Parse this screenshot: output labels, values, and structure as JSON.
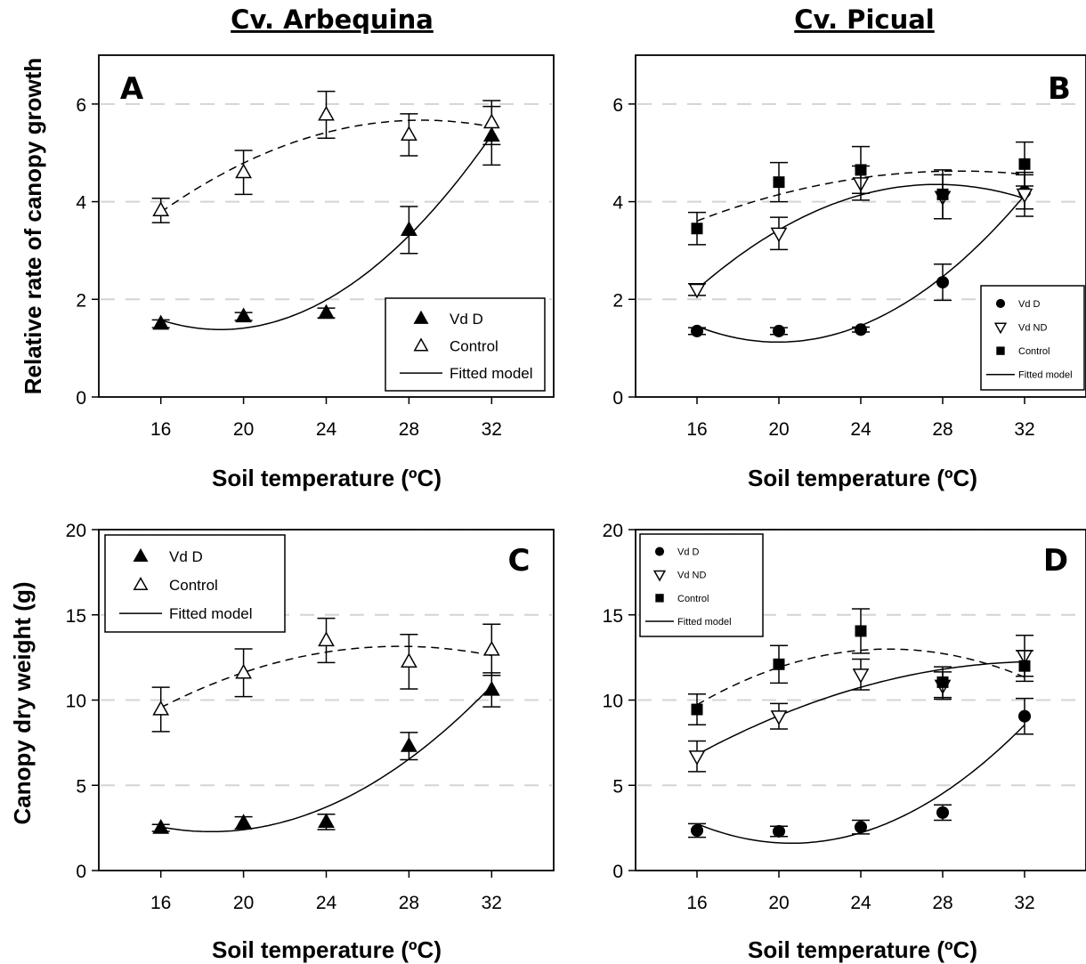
{
  "figure": {
    "column_titles": [
      "Cv. Arbequina",
      "Cv. Picual"
    ],
    "xlabel": "Soil temperature (ºC)",
    "ylabel_top": "Relative rate of canopy growth",
    "ylabel_bottom": "Canopy dry weight (g)"
  },
  "chart_data": [
    {
      "panel": "A",
      "type": "scatter",
      "xlabel": "Soil temperature (ºC)",
      "ylabel": "Relative rate of canopy growth",
      "x": [
        16,
        20,
        24,
        28,
        32
      ],
      "xlim": [
        13,
        35
      ],
      "ylim": [
        0,
        7
      ],
      "yticks": [
        0,
        2,
        4,
        6
      ],
      "grid": "horizontal dashed",
      "legend": {
        "position": "bottom-right",
        "entries": [
          "Vd D",
          "Control",
          "Fitted model"
        ]
      },
      "series": [
        {
          "name": "Vd D",
          "marker": "filled-triangle",
          "values": [
            1.5,
            1.65,
            1.72,
            3.42,
            5.35
          ],
          "errors": [
            0.08,
            0.08,
            0.1,
            0.48,
            0.6
          ],
          "fit": "solid"
        },
        {
          "name": "Control",
          "marker": "open-triangle",
          "values": [
            3.82,
            4.6,
            5.78,
            5.37,
            5.62
          ],
          "errors": [
            0.25,
            0.45,
            0.48,
            0.43,
            0.45
          ],
          "fit": "dashed"
        }
      ]
    },
    {
      "panel": "B",
      "type": "scatter",
      "xlabel": "Soil temperature (ºC)",
      "ylabel": "",
      "x": [
        16,
        20,
        24,
        28,
        32
      ],
      "xlim": [
        13,
        35
      ],
      "ylim": [
        0,
        7
      ],
      "yticks": [
        0,
        2,
        4,
        6
      ],
      "grid": "horizontal dashed",
      "legend": {
        "position": "bottom-right",
        "entries": [
          "Vd D",
          "Vd ND",
          "Control",
          "Fitted model"
        ]
      },
      "series": [
        {
          "name": "Vd D",
          "marker": "filled-circle",
          "values": [
            1.35,
            1.35,
            1.38,
            2.35,
            4.2
          ],
          "errors": [
            0.07,
            0.07,
            0.05,
            0.37,
            0.35
          ],
          "fit": "solid"
        },
        {
          "name": "Vd ND",
          "marker": "open-down-triangle",
          "values": [
            2.2,
            3.35,
            4.38,
            4.1,
            4.15
          ],
          "errors": [
            0.12,
            0.33,
            0.35,
            0.45,
            0.45
          ],
          "fit": "solid"
        },
        {
          "name": "Control",
          "marker": "filled-square",
          "values": [
            3.45,
            4.4,
            4.65,
            4.15,
            4.77
          ],
          "errors": [
            0.33,
            0.4,
            0.48,
            0.5,
            0.45
          ],
          "fit": "dashed"
        }
      ]
    },
    {
      "panel": "C",
      "type": "scatter",
      "xlabel": "Soil temperature (ºC)",
      "ylabel": "Canopy dry weight (g)",
      "x": [
        16,
        20,
        24,
        28,
        32
      ],
      "xlim": [
        13,
        35
      ],
      "ylim": [
        0,
        20
      ],
      "yticks": [
        0,
        5,
        10,
        15,
        20
      ],
      "grid": "horizontal dashed",
      "legend": {
        "position": "top-left",
        "entries": [
          "Vd D",
          "Control",
          "Fitted model"
        ]
      },
      "series": [
        {
          "name": "Vd D",
          "marker": "filled-triangle",
          "values": [
            2.5,
            2.8,
            2.85,
            7.3,
            10.6
          ],
          "errors": [
            0.2,
            0.35,
            0.45,
            0.8,
            1.0
          ],
          "fit": "solid"
        },
        {
          "name": "Control",
          "marker": "open-triangle",
          "values": [
            9.45,
            11.6,
            13.5,
            12.25,
            12.95
          ],
          "errors": [
            1.3,
            1.4,
            1.3,
            1.6,
            1.5
          ],
          "fit": "dashed"
        }
      ]
    },
    {
      "panel": "D",
      "type": "scatter",
      "xlabel": "Soil temperature (ºC)",
      "ylabel": "",
      "x": [
        16,
        20,
        24,
        28,
        32
      ],
      "xlim": [
        13,
        35
      ],
      "ylim": [
        0,
        20
      ],
      "yticks": [
        0,
        5,
        10,
        15,
        20
      ],
      "grid": "horizontal dashed",
      "legend": {
        "position": "top-left",
        "entries": [
          "Vd D",
          "Vd ND",
          "Control",
          "Fitted model"
        ]
      },
      "series": [
        {
          "name": "Vd D",
          "marker": "filled-circle",
          "values": [
            2.35,
            2.3,
            2.55,
            3.4,
            9.05
          ],
          "errors": [
            0.4,
            0.3,
            0.4,
            0.45,
            1.05
          ],
          "fit": "solid"
        },
        {
          "name": "Vd ND",
          "marker": "open-down-triangle",
          "values": [
            6.7,
            9.05,
            11.5,
            10.85,
            12.6
          ],
          "errors": [
            0.9,
            0.75,
            0.9,
            0.8,
            1.2
          ],
          "fit": "solid"
        },
        {
          "name": "Control",
          "marker": "filled-square",
          "values": [
            9.45,
            12.1,
            14.05,
            11.05,
            12.0
          ],
          "errors": [
            0.9,
            1.1,
            1.3,
            0.9,
            0.9
          ],
          "fit": "dashed"
        }
      ]
    }
  ]
}
